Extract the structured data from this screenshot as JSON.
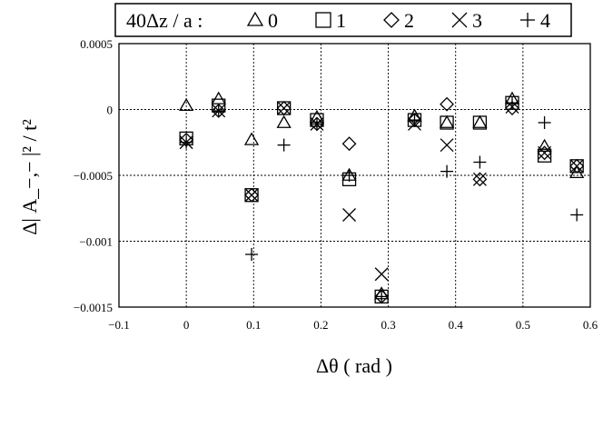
{
  "chart_data": {
    "type": "scatter",
    "xlabel": "Δθ ( rad )",
    "ylabel": "Δ| A_−,− |² / t²",
    "xlim": [
      -0.1,
      0.6
    ],
    "ylim": [
      -0.0015,
      0.0005
    ],
    "x_ticks": [
      -0.1,
      0,
      0.1,
      0.2,
      0.3,
      0.4,
      0.5,
      0.6
    ],
    "x_tick_labels": [
      "−0.1",
      "0",
      "0.1",
      "0.2",
      "0.3",
      "0.4",
      "0.5",
      "0.6"
    ],
    "y_ticks": [
      0.0005,
      0,
      -0.0005,
      -0.001,
      -0.0015
    ],
    "y_tick_labels": [
      "0.0005",
      "0",
      "−0.0005",
      "−0.001",
      "−0.0015"
    ],
    "grid": true,
    "legend_title": "40Δz / a :",
    "legend_position": "top",
    "series": [
      {
        "name": "0",
        "marker": "triangle",
        "x": [
          0,
          0.048,
          0.097,
          0.145,
          0.194,
          0.242,
          0.29,
          0.339,
          0.387,
          0.436,
          0.484,
          0.532,
          0.58
        ],
        "y": [
          3e-05,
          8e-05,
          -0.00023,
          -0.0001,
          -6e-05,
          -0.0005,
          -0.0014,
          -5e-05,
          -0.0001,
          -0.0001,
          8e-05,
          -0.00028,
          -0.00048
        ]
      },
      {
        "name": "1",
        "marker": "square",
        "x": [
          0,
          0.048,
          0.097,
          0.145,
          0.194,
          0.242,
          0.29,
          0.339,
          0.387,
          0.436,
          0.484,
          0.532,
          0.58
        ],
        "y": [
          -0.00022,
          3e-05,
          -0.00065,
          1e-05,
          -8e-05,
          -0.00053,
          -0.00142,
          -8e-05,
          -0.0001,
          -0.0001,
          5e-05,
          -0.00035,
          -0.00043
        ]
      },
      {
        "name": "2",
        "marker": "diamond",
        "x": [
          0,
          0.048,
          0.097,
          0.145,
          0.194,
          0.242,
          0.29,
          0.339,
          0.387,
          0.436,
          0.484,
          0.532,
          0.58
        ],
        "y": [
          -0.00023,
          -1e-05,
          -0.00065,
          1e-05,
          -0.00011,
          -0.00026,
          -0.00142,
          -8e-05,
          4e-05,
          -0.00053,
          1e-05,
          -0.00033,
          -0.00043
        ]
      },
      {
        "name": "3",
        "marker": "cross",
        "x": [
          0,
          0.048,
          0.097,
          0.145,
          0.194,
          0.242,
          0.29,
          0.339,
          0.387,
          0.436,
          0.484,
          0.532,
          0.58
        ],
        "y": [
          -0.00025,
          -1e-05,
          -0.00065,
          1e-05,
          -0.00011,
          -0.0008,
          -0.00125,
          -0.00011,
          -0.00027,
          -0.00053,
          2e-05,
          -0.00033,
          -0.00043
        ]
      },
      {
        "name": "4",
        "marker": "plus",
        "x": [
          0,
          0.048,
          0.097,
          0.145,
          0.194,
          0.242,
          0.29,
          0.339,
          0.387,
          0.436,
          0.484,
          0.532,
          0.58
        ],
        "y": [
          -0.00025,
          -1e-05,
          -0.0011,
          -0.00027,
          -0.00011,
          -0.0005,
          -0.00142,
          -8e-05,
          -0.00047,
          -0.0004,
          5e-05,
          -0.0001,
          -0.0008
        ]
      }
    ]
  }
}
